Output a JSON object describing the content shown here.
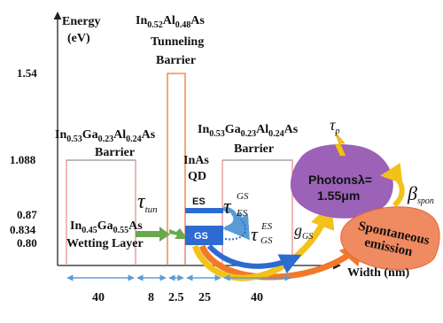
{
  "axes": {
    "y_title_line1": "Energy",
    "y_title_line2": "(eV)",
    "x_title": "Width (nm)",
    "y_ticks": [
      "1.54",
      "1.088",
      "0.87",
      "0.834",
      "0.80"
    ]
  },
  "regions": {
    "tunnel_barrier": {
      "line1": "Tunneling",
      "line2": "Barrier"
    },
    "left_barrier": {
      "line1": "Barrier"
    },
    "right_barrier": {
      "line1": "Barrier"
    },
    "wetting": {
      "line1": "Wetting Layer"
    },
    "qd": {
      "line1": "InAs",
      "line2": "QD"
    }
  },
  "levels": {
    "es": "ES",
    "gs": "GS"
  },
  "widths": [
    "40",
    "8",
    "2.5",
    "25",
    "40"
  ],
  "rates": {
    "tau_p_sub": "p",
    "tau_tun_sub": "tun",
    "tau_es_gs_sub": "ES",
    "tau_es_gs_sup": "GS",
    "tau_gs_es_sub": "GS",
    "tau_gs_es_sup": "ES",
    "beta_sub": "spon",
    "g_sub": "GS"
  },
  "blobs": {
    "photons_line1": "Photonsλ=",
    "photons_line2": "1.55μm",
    "spon_line1": "Spontaneous",
    "spon_line2": "emission"
  },
  "colors": {
    "photon_blob": "#9b62b8",
    "spon_blob": "#f08a60",
    "green_arrow": "#6aa84f",
    "blue_arrow": "#2e6bd1",
    "yellow_arrow": "#f2c21a",
    "orange_line": "#f07a2a"
  }
}
